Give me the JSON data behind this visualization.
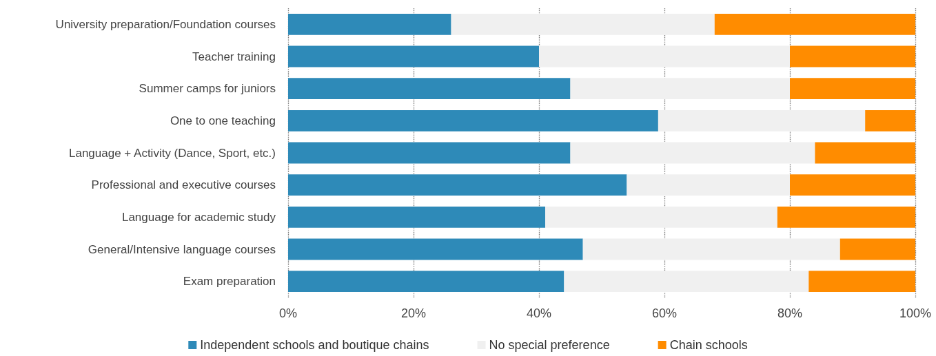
{
  "chart_data": {
    "type": "bar",
    "orientation": "horizontal",
    "stacked": true,
    "categories": [
      "University preparation/Foundation courses",
      "Teacher training",
      "Summer camps for juniors",
      "One to one teaching",
      "Language + Activity (Dance, Sport, etc.)",
      "Professional and executive courses",
      "Language for academic study",
      "General/Intensive language courses",
      "Exam preparation"
    ],
    "series": [
      {
        "name": "Independent schools and boutique chains",
        "color": "#2e8ab8",
        "values": [
          26,
          40,
          45,
          59,
          45,
          54,
          41,
          47,
          44
        ]
      },
      {
        "name": "No special preference",
        "color": "#f0f0f0",
        "values": [
          42,
          40,
          35,
          33,
          39,
          26,
          37,
          41,
          39
        ]
      },
      {
        "name": "Chain schools",
        "color": "#ff8c00",
        "values": [
          32,
          20,
          20,
          8,
          16,
          20,
          22,
          12,
          17
        ]
      }
    ],
    "xlim": [
      0,
      100
    ],
    "xticks": [
      {
        "value": 0,
        "label": "0%"
      },
      {
        "value": 20,
        "label": "20%"
      },
      {
        "value": 40,
        "label": "40%"
      },
      {
        "value": 60,
        "label": "60%"
      },
      {
        "value": 80,
        "label": "80%"
      },
      {
        "value": 100,
        "label": "100%"
      }
    ],
    "grid": "x",
    "legend": "bottom"
  }
}
